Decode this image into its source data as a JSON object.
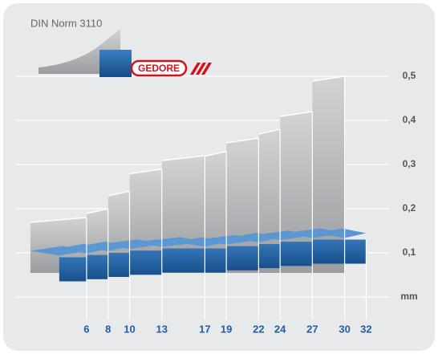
{
  "chart_data": {
    "type": "step-area",
    "x": [
      6,
      8,
      10,
      13,
      17,
      19,
      22,
      24,
      27,
      30,
      32
    ],
    "series": [
      {
        "name": "DIN Norm 3110",
        "color": "#b4b6b9",
        "values": [
          0.18,
          0.2,
          0.24,
          0.29,
          0.32,
          0.33,
          0.36,
          0.38,
          0.42,
          0.5,
          null
        ]
      },
      {
        "name": "GEDORE",
        "color": "#1f5d9c",
        "values": [
          0.09,
          0.095,
          0.1,
          0.105,
          0.11,
          0.11,
          0.115,
          0.12,
          0.125,
          0.13,
          0.13
        ]
      }
    ],
    "x_label": "mm",
    "xlim": [
      0,
      36
    ],
    "ylim": [
      0,
      0.6
    ],
    "yticks": [
      {
        "value": 0.1,
        "label": "0,1"
      },
      {
        "value": 0.2,
        "label": "0,2"
      },
      {
        "value": 0.3,
        "label": "0,3"
      },
      {
        "value": 0.4,
        "label": "0,4"
      },
      {
        "value": 0.5,
        "label": "0,5"
      }
    ],
    "grid": true
  }
}
